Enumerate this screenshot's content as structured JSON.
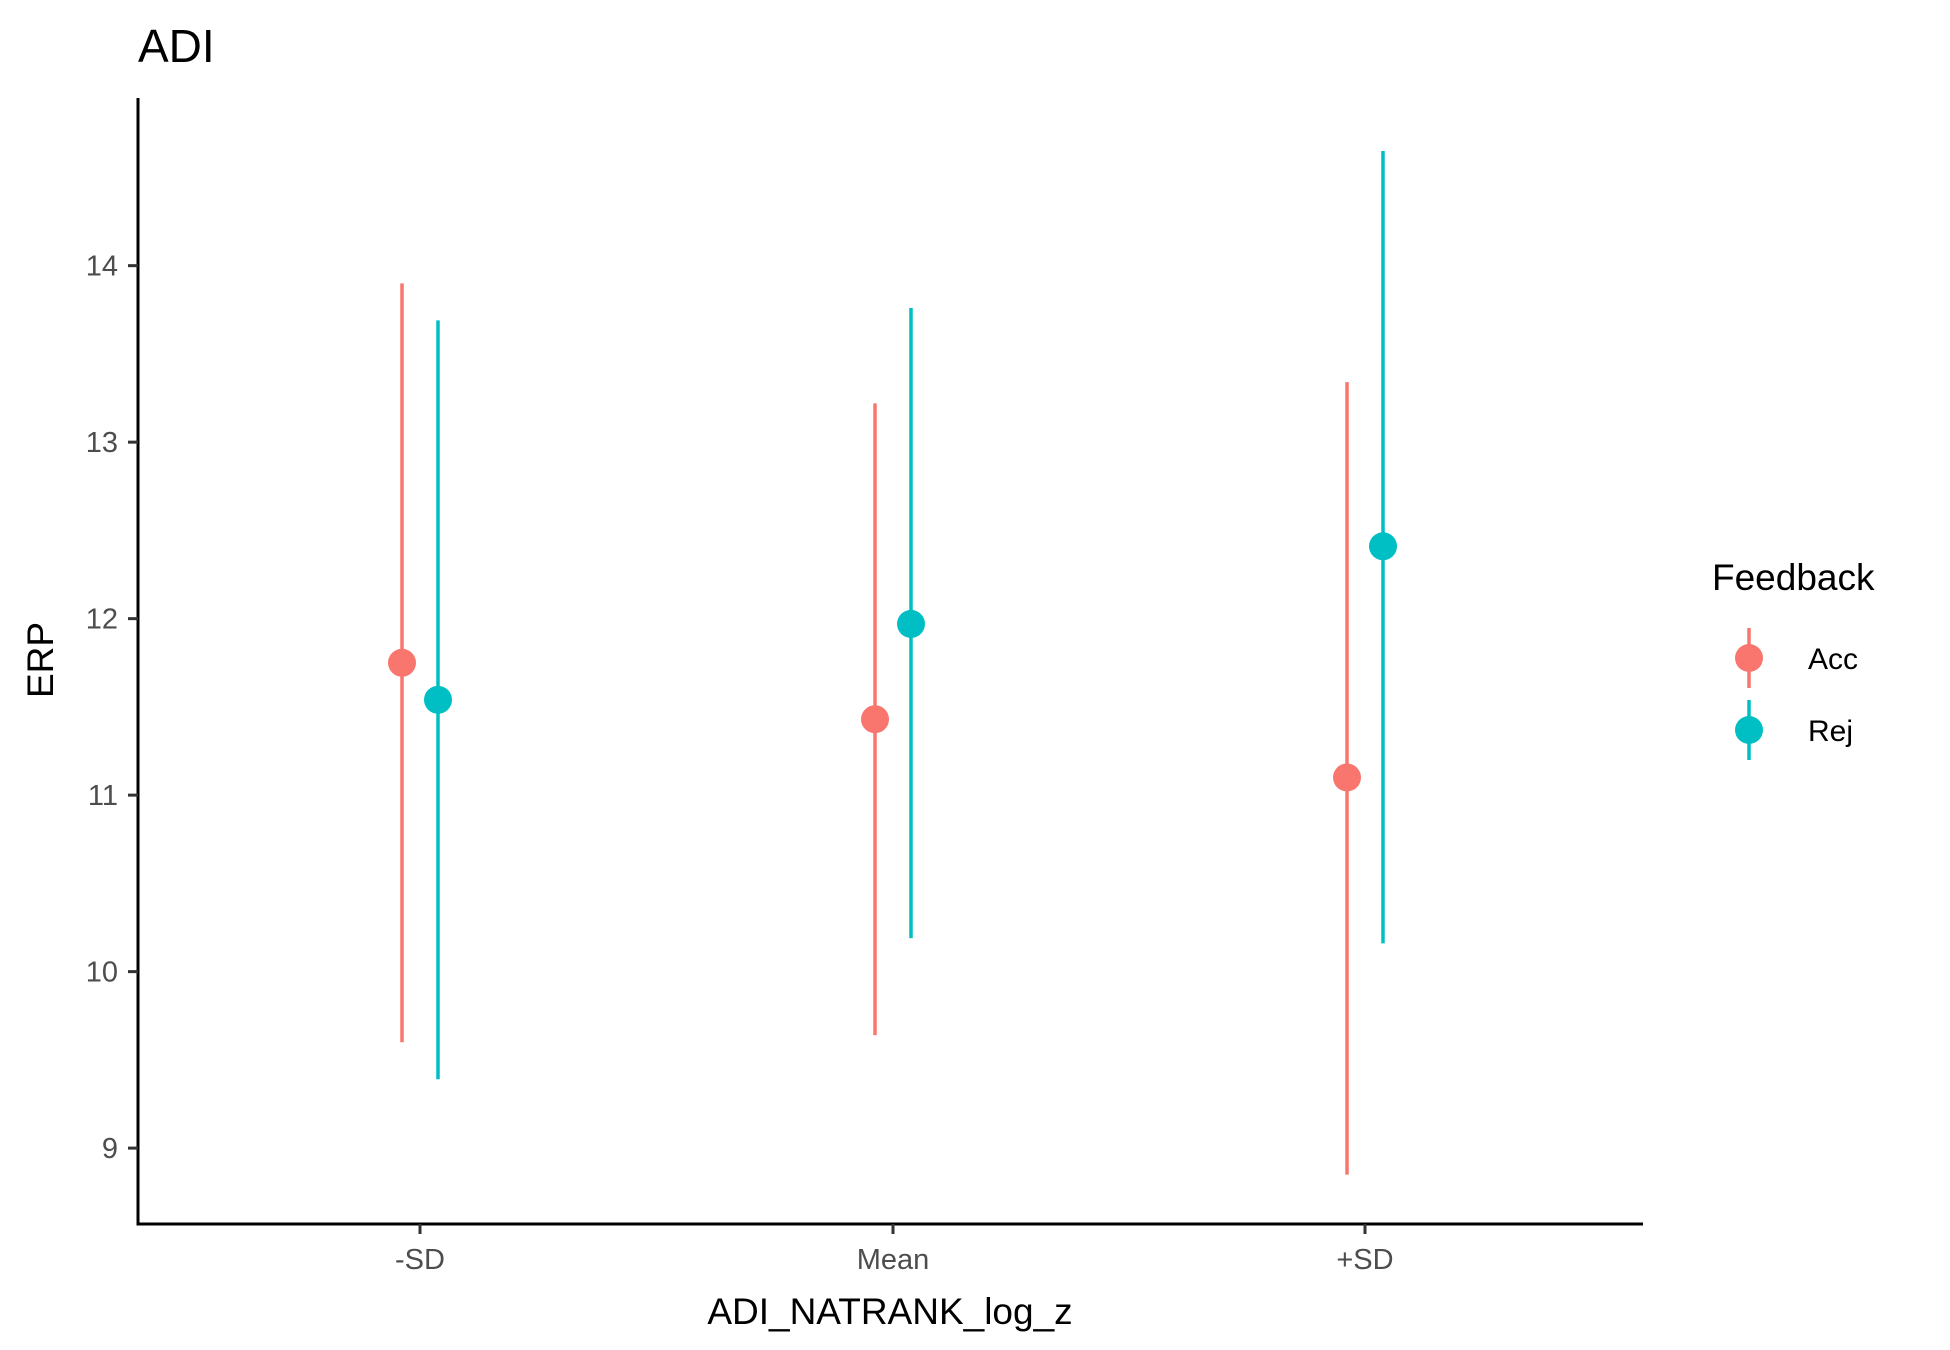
{
  "chart_data": {
    "type": "scatter",
    "title": "ADI",
    "xlabel": "ADI_NATRANK_log_z",
    "ylabel": "ERP",
    "categories": [
      "-SD",
      "Mean",
      "+SD"
    ],
    "yticks": [
      "9",
      "10",
      "11",
      "12",
      "13",
      "14"
    ],
    "ylim": [
      8.57,
      14.95
    ],
    "grid": false,
    "legend": {
      "title": "Feedback",
      "position": "right",
      "entries": [
        "Acc",
        "Rej"
      ]
    },
    "series": [
      {
        "name": "Acc",
        "color": "#F8766D",
        "values": [
          11.75,
          11.43,
          11.1
        ],
        "lower": [
          9.6,
          9.64,
          8.85
        ],
        "upper": [
          13.9,
          13.22,
          13.34
        ]
      },
      {
        "name": "Rej",
        "color": "#00BFC4",
        "values": [
          11.54,
          11.97,
          12.41
        ],
        "lower": [
          9.39,
          10.19,
          10.16
        ],
        "upper": [
          13.69,
          13.76,
          14.65
        ]
      }
    ]
  }
}
